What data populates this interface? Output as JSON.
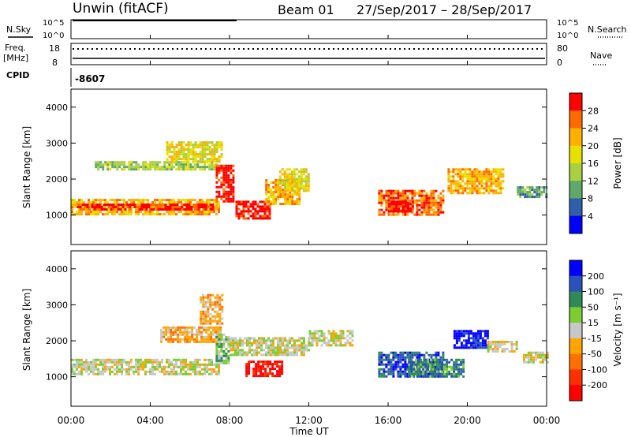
{
  "header": {
    "station": "Unwin (fitACF)",
    "beam": "Beam 01",
    "date_range": "27/Sep/2017 – 28/Sep/2017"
  },
  "top_panels": {
    "nsky_label": "N.Sky",
    "nsky_ticks": [
      "10^5",
      "10^0"
    ],
    "nsearch_label": "N.Search",
    "nsearch_ticks": [
      "10^5",
      "10^0"
    ],
    "freq_label": "Freq.",
    "freq_unit": "[MHz]",
    "freq_ticks": [
      "18",
      "8"
    ],
    "nave_label": "Nave",
    "nave_ticks": [
      "80",
      "0"
    ],
    "cpid_label": "CPID",
    "cpid_value": "-8607"
  },
  "chart_data": [
    {
      "type": "heatmap",
      "name": "power",
      "ylabel": "Slant Range [km]",
      "yticks": [
        "4000",
        "3000",
        "2000",
        "1000"
      ],
      "ylim": [
        180,
        4500
      ],
      "xlim_hours": [
        0,
        24
      ],
      "colorbar_label": "Power [dB]",
      "colorbar_ticks": [
        "28",
        "24",
        "20",
        "16",
        "12",
        "8",
        "4"
      ],
      "colorbar_colors": [
        "#ff0000",
        "#ff6a00",
        "#ffb000",
        "#e8e000",
        "#a8d040",
        "#5fa86a",
        "#2f5fa8",
        "#0000ff"
      ],
      "bands": [
        {
          "x0": 0.0,
          "x1": 7.5,
          "y0": 1050,
          "y1": 1450,
          "level": 5
        },
        {
          "x0": 0.3,
          "x1": 7.2,
          "y0": 1180,
          "y1": 1320,
          "level": 7
        },
        {
          "x0": 1.2,
          "x1": 7.3,
          "y0": 2300,
          "y1": 2500,
          "level": 3
        },
        {
          "x0": 4.8,
          "x1": 7.6,
          "y0": 2500,
          "y1": 3050,
          "level": 4
        },
        {
          "x0": 7.3,
          "x1": 8.2,
          "y0": 1400,
          "y1": 2400,
          "level": 7
        },
        {
          "x0": 8.3,
          "x1": 10.0,
          "y0": 900,
          "y1": 1400,
          "level": 7
        },
        {
          "x0": 9.8,
          "x1": 11.5,
          "y0": 1300,
          "y1": 2000,
          "level": 5
        },
        {
          "x0": 10.5,
          "x1": 12.0,
          "y0": 1700,
          "y1": 2300,
          "level": 4
        },
        {
          "x0": 15.5,
          "x1": 18.8,
          "y0": 1000,
          "y1": 1700,
          "level": 6
        },
        {
          "x0": 16.0,
          "x1": 17.2,
          "y0": 1100,
          "y1": 1400,
          "level": 7
        },
        {
          "x0": 19.0,
          "x1": 21.8,
          "y0": 1600,
          "y1": 2300,
          "level": 5
        },
        {
          "x0": 22.5,
          "x1": 24.0,
          "y0": 1500,
          "y1": 1800,
          "level": 2
        }
      ]
    },
    {
      "type": "heatmap",
      "name": "velocity",
      "ylabel": "Slant Range [km]",
      "yticks": [
        "4000",
        "3000",
        "2000",
        "1000"
      ],
      "ylim": [
        180,
        4500
      ],
      "xlim_hours": [
        0,
        24
      ],
      "xticks": [
        "00:00",
        "04:00",
        "08:00",
        "12:00",
        "16:00",
        "20:00",
        "00:00"
      ],
      "xlabel": "Time UT",
      "colorbar_label": "Velocity [m s⁻¹]",
      "colorbar_ticks": [
        "200",
        "100",
        "50",
        "15",
        "-15",
        "-50",
        "-100",
        "-200"
      ],
      "colorbar_colors": [
        "#0000ff",
        "#2a52be",
        "#2e8b57",
        "#7ccd32",
        "#c8c8c8",
        "#ffa500",
        "#ff7000",
        "#ff3000",
        "#ff0000"
      ],
      "bands": [
        {
          "x0": 0.0,
          "x1": 7.5,
          "y0": 1050,
          "y1": 1500,
          "level": 4
        },
        {
          "x0": 4.5,
          "x1": 7.5,
          "y0": 2000,
          "y1": 2400,
          "level": 5
        },
        {
          "x0": 6.5,
          "x1": 7.6,
          "y0": 2500,
          "y1": 3300,
          "level": 5
        },
        {
          "x0": 7.3,
          "x1": 8.0,
          "y0": 1400,
          "y1": 2200,
          "level": 3
        },
        {
          "x0": 8.8,
          "x1": 10.6,
          "y0": 1000,
          "y1": 1450,
          "level": 8
        },
        {
          "x0": 8.0,
          "x1": 12.0,
          "y0": 1600,
          "y1": 2100,
          "level": 4
        },
        {
          "x0": 12.0,
          "x1": 14.2,
          "y0": 1900,
          "y1": 2300,
          "level": 4
        },
        {
          "x0": 15.5,
          "x1": 18.8,
          "y0": 1000,
          "y1": 1700,
          "level": 1
        },
        {
          "x0": 17.0,
          "x1": 19.8,
          "y0": 1000,
          "y1": 1500,
          "level": 2
        },
        {
          "x0": 19.3,
          "x1": 21.0,
          "y0": 1800,
          "y1": 2300,
          "level": 0
        },
        {
          "x0": 21.0,
          "x1": 22.5,
          "y0": 1700,
          "y1": 2000,
          "level": 4
        },
        {
          "x0": 22.8,
          "x1": 24.0,
          "y0": 1400,
          "y1": 1700,
          "level": 4
        }
      ]
    }
  ]
}
